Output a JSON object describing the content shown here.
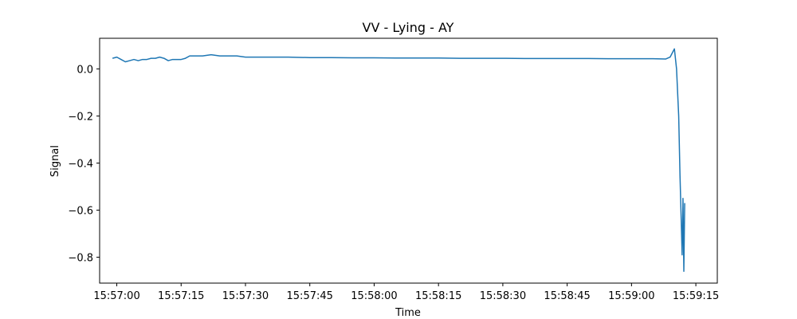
{
  "chart_data": {
    "type": "line",
    "title": "VV - Lying - AY",
    "xlabel": "Time",
    "ylabel": "Signal",
    "x_tick_labels": [
      "15:57:00",
      "15:57:15",
      "15:57:30",
      "15:57:45",
      "15:58:00",
      "15:58:15",
      "15:58:30",
      "15:58:45",
      "15:59:00",
      "15:59:15"
    ],
    "y_ticks": [
      0.0,
      -0.2,
      -0.4,
      -0.6,
      -0.8
    ],
    "y_tick_labels": [
      "0.0",
      "−0.2",
      "−0.4",
      "−0.6",
      "−0.8"
    ],
    "xlim": [
      "15:56:56",
      "15:59:20"
    ],
    "ylim": [
      -0.91,
      0.13
    ],
    "grid": false,
    "series": [
      {
        "color": "#1f77b4",
        "points": [
          [
            "15:56:59",
            0.045
          ],
          [
            "15:57:00",
            0.05
          ],
          [
            "15:57:01",
            0.04
          ],
          [
            "15:57:02",
            0.03
          ],
          [
            "15:57:03",
            0.035
          ],
          [
            "15:57:04",
            0.04
          ],
          [
            "15:57:05",
            0.035
          ],
          [
            "15:57:06",
            0.04
          ],
          [
            "15:57:07",
            0.04
          ],
          [
            "15:57:08",
            0.045
          ],
          [
            "15:57:09",
            0.045
          ],
          [
            "15:57:10",
            0.05
          ],
          [
            "15:57:11",
            0.045
          ],
          [
            "15:57:12",
            0.035
          ],
          [
            "15:57:13",
            0.04
          ],
          [
            "15:57:14",
            0.04
          ],
          [
            "15:57:15",
            0.04
          ],
          [
            "15:57:16",
            0.045
          ],
          [
            "15:57:17",
            0.055
          ],
          [
            "15:57:18",
            0.055
          ],
          [
            "15:57:20",
            0.055
          ],
          [
            "15:57:22",
            0.06
          ],
          [
            "15:57:24",
            0.055
          ],
          [
            "15:57:26",
            0.055
          ],
          [
            "15:57:28",
            0.055
          ],
          [
            "15:57:30",
            0.05
          ],
          [
            "15:57:35",
            0.05
          ],
          [
            "15:57:40",
            0.05
          ],
          [
            "15:57:45",
            0.048
          ],
          [
            "15:57:50",
            0.048
          ],
          [
            "15:57:55",
            0.047
          ],
          [
            "15:58:00",
            0.047
          ],
          [
            "15:58:05",
            0.046
          ],
          [
            "15:58:10",
            0.046
          ],
          [
            "15:58:15",
            0.046
          ],
          [
            "15:58:20",
            0.045
          ],
          [
            "15:58:25",
            0.045
          ],
          [
            "15:58:30",
            0.045
          ],
          [
            "15:58:35",
            0.044
          ],
          [
            "15:58:40",
            0.044
          ],
          [
            "15:58:45",
            0.044
          ],
          [
            "15:58:50",
            0.044
          ],
          [
            "15:58:55",
            0.043
          ],
          [
            "15:59:00",
            0.043
          ],
          [
            "15:59:05",
            0.043
          ],
          [
            "15:59:08",
            0.042
          ],
          [
            "15:59:09",
            0.05
          ],
          [
            "15:59:10",
            0.085
          ],
          [
            "15:59:10.5",
            0.0
          ],
          [
            "15:59:11",
            -0.2
          ],
          [
            "15:59:11.3",
            -0.45
          ],
          [
            "15:59:11.6",
            -0.65
          ],
          [
            "15:59:11.8",
            -0.79
          ],
          [
            "15:59:12.0",
            -0.55
          ],
          [
            "15:59:12.2",
            -0.86
          ],
          [
            "15:59:12.4",
            -0.57
          ]
        ]
      }
    ]
  }
}
